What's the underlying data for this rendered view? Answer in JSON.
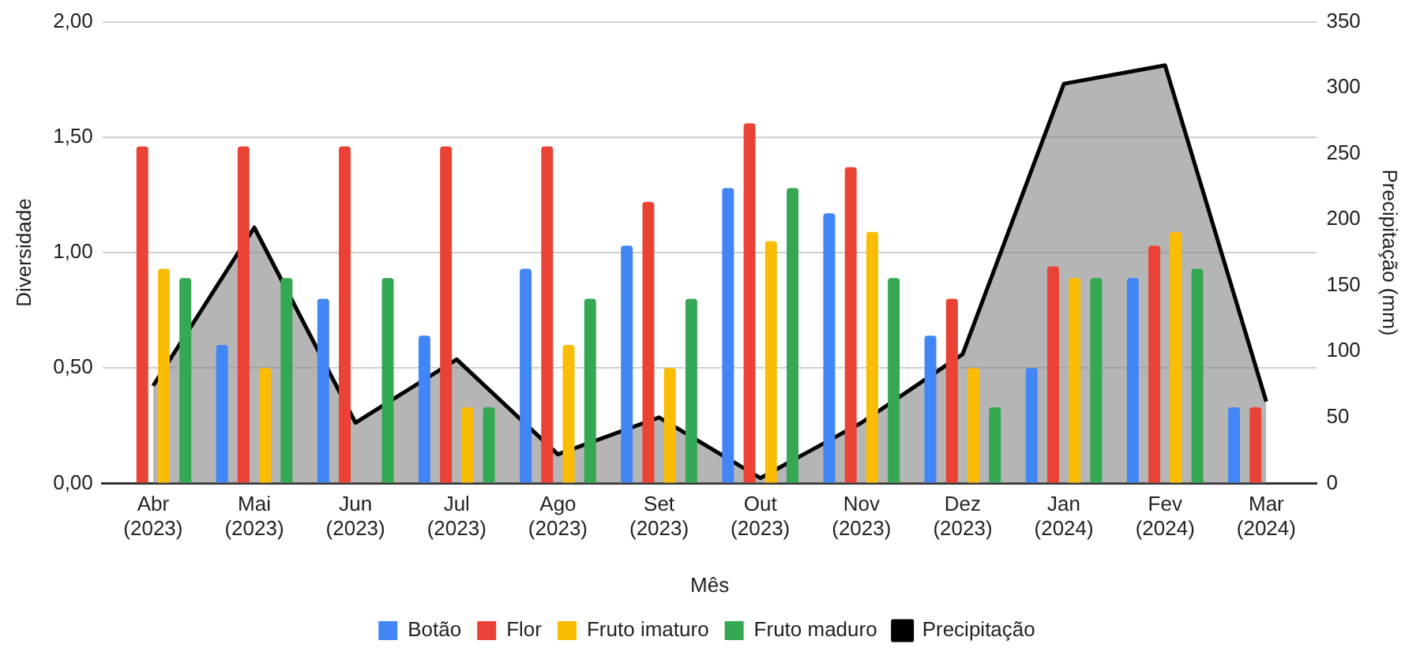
{
  "chart_data": {
    "type": "bar",
    "xlabel": "Mês",
    "ylabel": "Diversidade",
    "y2label": "Precipitação (mm)",
    "categories": [
      "Abr\n(2023)",
      "Mai\n(2023)",
      "Jun\n(2023)",
      "Jul\n(2023)",
      "Ago\n(2023)",
      "Set\n(2023)",
      "Out\n(2023)",
      "Nov\n(2023)",
      "Dez\n(2023)",
      "Jan\n(2024)",
      "Fev\n(2024)",
      "Mar\n(2024)"
    ],
    "series": [
      {
        "name": "Botão",
        "color": "#4285f4",
        "values": [
          null,
          0.6,
          0.8,
          0.64,
          0.93,
          1.03,
          1.28,
          1.17,
          0.64,
          0.5,
          0.89,
          0.33
        ]
      },
      {
        "name": "Flor",
        "color": "#ea4335",
        "values": [
          1.46,
          1.46,
          1.46,
          1.46,
          1.46,
          1.22,
          1.56,
          1.37,
          0.8,
          0.94,
          1.03,
          0.33
        ]
      },
      {
        "name": "Fruto imaturo",
        "color": "#fbbc04",
        "values": [
          0.93,
          0.5,
          null,
          0.33,
          0.6,
          0.5,
          1.05,
          1.09,
          0.5,
          0.89,
          1.09,
          null
        ]
      },
      {
        "name": "Fruto maduro",
        "color": "#34a853",
        "values": [
          0.89,
          0.89,
          0.89,
          0.33,
          0.8,
          0.8,
          1.28,
          0.89,
          0.33,
          0.89,
          0.93,
          null
        ]
      },
      {
        "name": "Precipitação",
        "type": "area",
        "axis": "y2",
        "color": "#000000",
        "values": [
          74,
          194,
          46,
          94,
          22,
          50,
          4,
          46,
          98,
          303,
          317,
          62
        ]
      }
    ],
    "ylim": [
      0,
      2
    ],
    "yticks": [
      {
        "value": 0,
        "label": "0,00"
      },
      {
        "value": 0.5,
        "label": "0,50"
      },
      {
        "value": 1,
        "label": "1,00"
      },
      {
        "value": 1.5,
        "label": "1,50"
      },
      {
        "value": 2,
        "label": "2,00"
      }
    ],
    "y2lim": [
      0,
      350
    ],
    "y2ticks": [
      0,
      50,
      100,
      150,
      200,
      250,
      300,
      350
    ],
    "grid": "y",
    "legend": "bottom"
  }
}
